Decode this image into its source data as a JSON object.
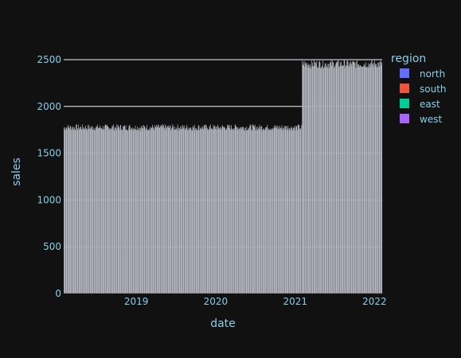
{
  "chart_data": {
    "type": "bar",
    "barmode": "stack",
    "xlabel": "date",
    "ylabel": "sales",
    "ylim": [
      0,
      2500
    ],
    "y_ticks": [
      0,
      500,
      1000,
      1500,
      2000,
      2500
    ],
    "x_ticks": [
      "2019",
      "2020",
      "2021",
      "2022"
    ],
    "x_range": [
      "2018-02-01",
      "2022-02-05"
    ],
    "grid": true,
    "legend_title": "region",
    "legend_position": "right",
    "series": [
      {
        "name": "north",
        "color": "#636efa"
      },
      {
        "name": "south",
        "color": "#EF553B"
      },
      {
        "name": "east",
        "color": "#00cc96"
      },
      {
        "name": "west",
        "color": "#ab63fa"
      }
    ],
    "bar_color": "#e5e8f6",
    "total_segments": [
      {
        "from": "2018-02-01",
        "to": "2021-01-31",
        "min": 1660,
        "max": 1810
      },
      {
        "from": "2021-02-01",
        "to": "2022-02-05",
        "min": 2300,
        "max": 2500
      }
    ]
  }
}
